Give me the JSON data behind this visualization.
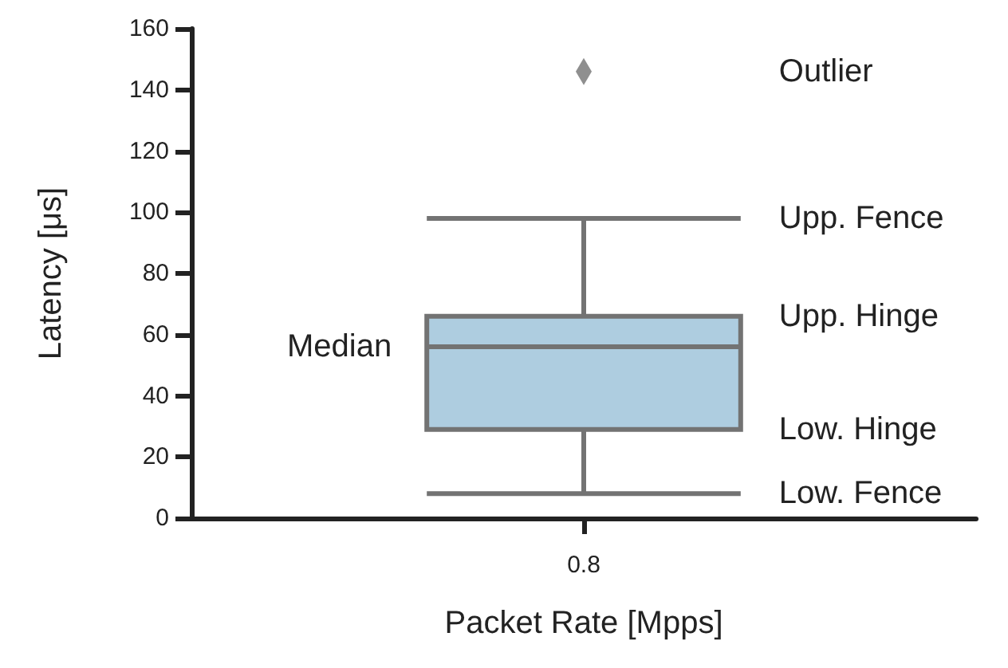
{
  "chart_data": {
    "type": "box",
    "xlabel": "Packet Rate [Mpps]",
    "ylabel": "Latency [μs]",
    "categories": [
      "0.8"
    ],
    "boxes": [
      {
        "low": 8,
        "q1": 29,
        "median": 56,
        "q3": 66,
        "high": 98,
        "outliers": [
          146
        ]
      }
    ],
    "color": "#aecde0",
    "marker": "diamond",
    "ylim": [
      0,
      160
    ],
    "yticks": [
      0,
      20,
      40,
      60,
      80,
      100,
      120,
      140,
      160
    ],
    "annotations": [
      "Outlier",
      "Upp. Fence",
      "Upp. Hinge",
      "Median",
      "Low. Hinge",
      "Low. Fence"
    ]
  }
}
